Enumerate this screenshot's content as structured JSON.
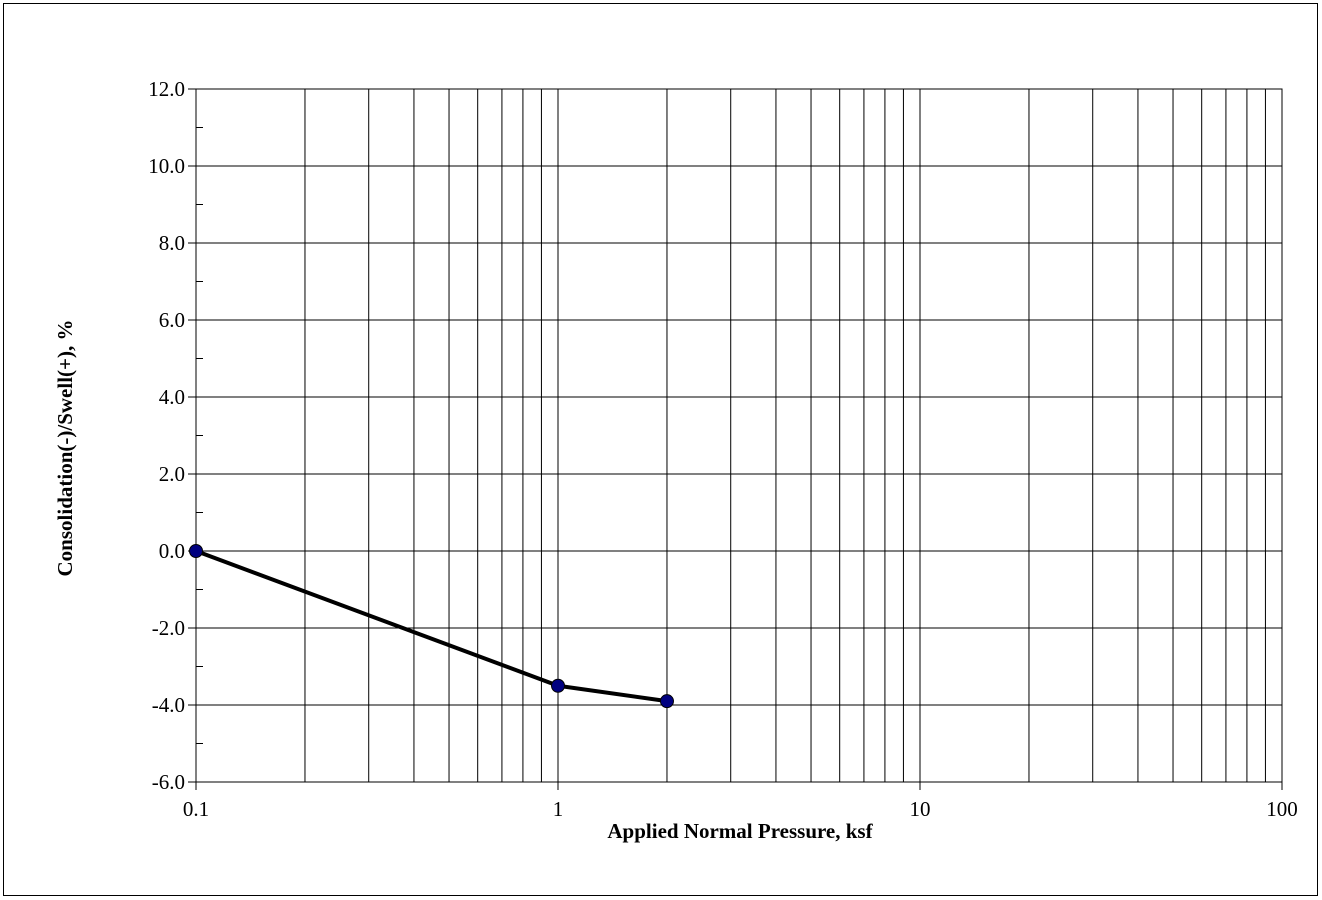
{
  "chart_data": {
    "type": "line",
    "title": "",
    "xlabel": "Applied Normal Pressure, ksf",
    "ylabel": "Consolidation(-)/Swell(+), %",
    "xscale": "log",
    "xlim": [
      0.1,
      100
    ],
    "ylim": [
      -6.0,
      12.0
    ],
    "x_ticks": [
      0.1,
      1,
      10,
      100
    ],
    "x_tick_labels": [
      "0.1",
      "1",
      "10",
      "100"
    ],
    "y_ticks": [
      12.0,
      10.0,
      8.0,
      6.0,
      4.0,
      2.0,
      0.0,
      -2.0,
      -4.0,
      -6.0
    ],
    "y_tick_labels": [
      "12.0",
      "10.0",
      "8.0",
      "6.0",
      "4.0",
      "2.0",
      "0.0",
      "-2.0",
      "-4.0",
      "-6.0"
    ],
    "grid": true,
    "legend": "none",
    "series": [
      {
        "x": [
          0.1,
          1,
          2
        ],
        "y": [
          0.0,
          -3.5,
          -3.9
        ],
        "line_color": "#000000",
        "marker_color": "#000080"
      }
    ]
  }
}
